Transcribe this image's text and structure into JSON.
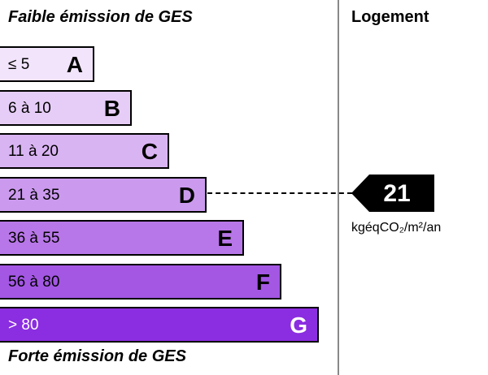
{
  "header": {
    "top": "Faible émission de GES",
    "bottom": "Forte émission de GES",
    "column": "Logement"
  },
  "classes": [
    {
      "range": "≤ 5",
      "letter": "A",
      "color": "#f2e4fb"
    },
    {
      "range": "6 à 10",
      "letter": "B",
      "color": "#e6cdf7"
    },
    {
      "range": "11 à 20",
      "letter": "C",
      "color": "#d9b4f3"
    },
    {
      "range": "21 à 35",
      "letter": "D",
      "color": "#cb9aee"
    },
    {
      "range": "36 à 55",
      "letter": "E",
      "color": "#b877e8"
    },
    {
      "range": "56 à 80",
      "letter": "F",
      "color": "#a357e3"
    },
    {
      "range": "> 80",
      "letter": "G",
      "color": "#8b2de0"
    }
  ],
  "indicator": {
    "value": 21,
    "unit": "kgéqCO₂/m²/an"
  }
}
